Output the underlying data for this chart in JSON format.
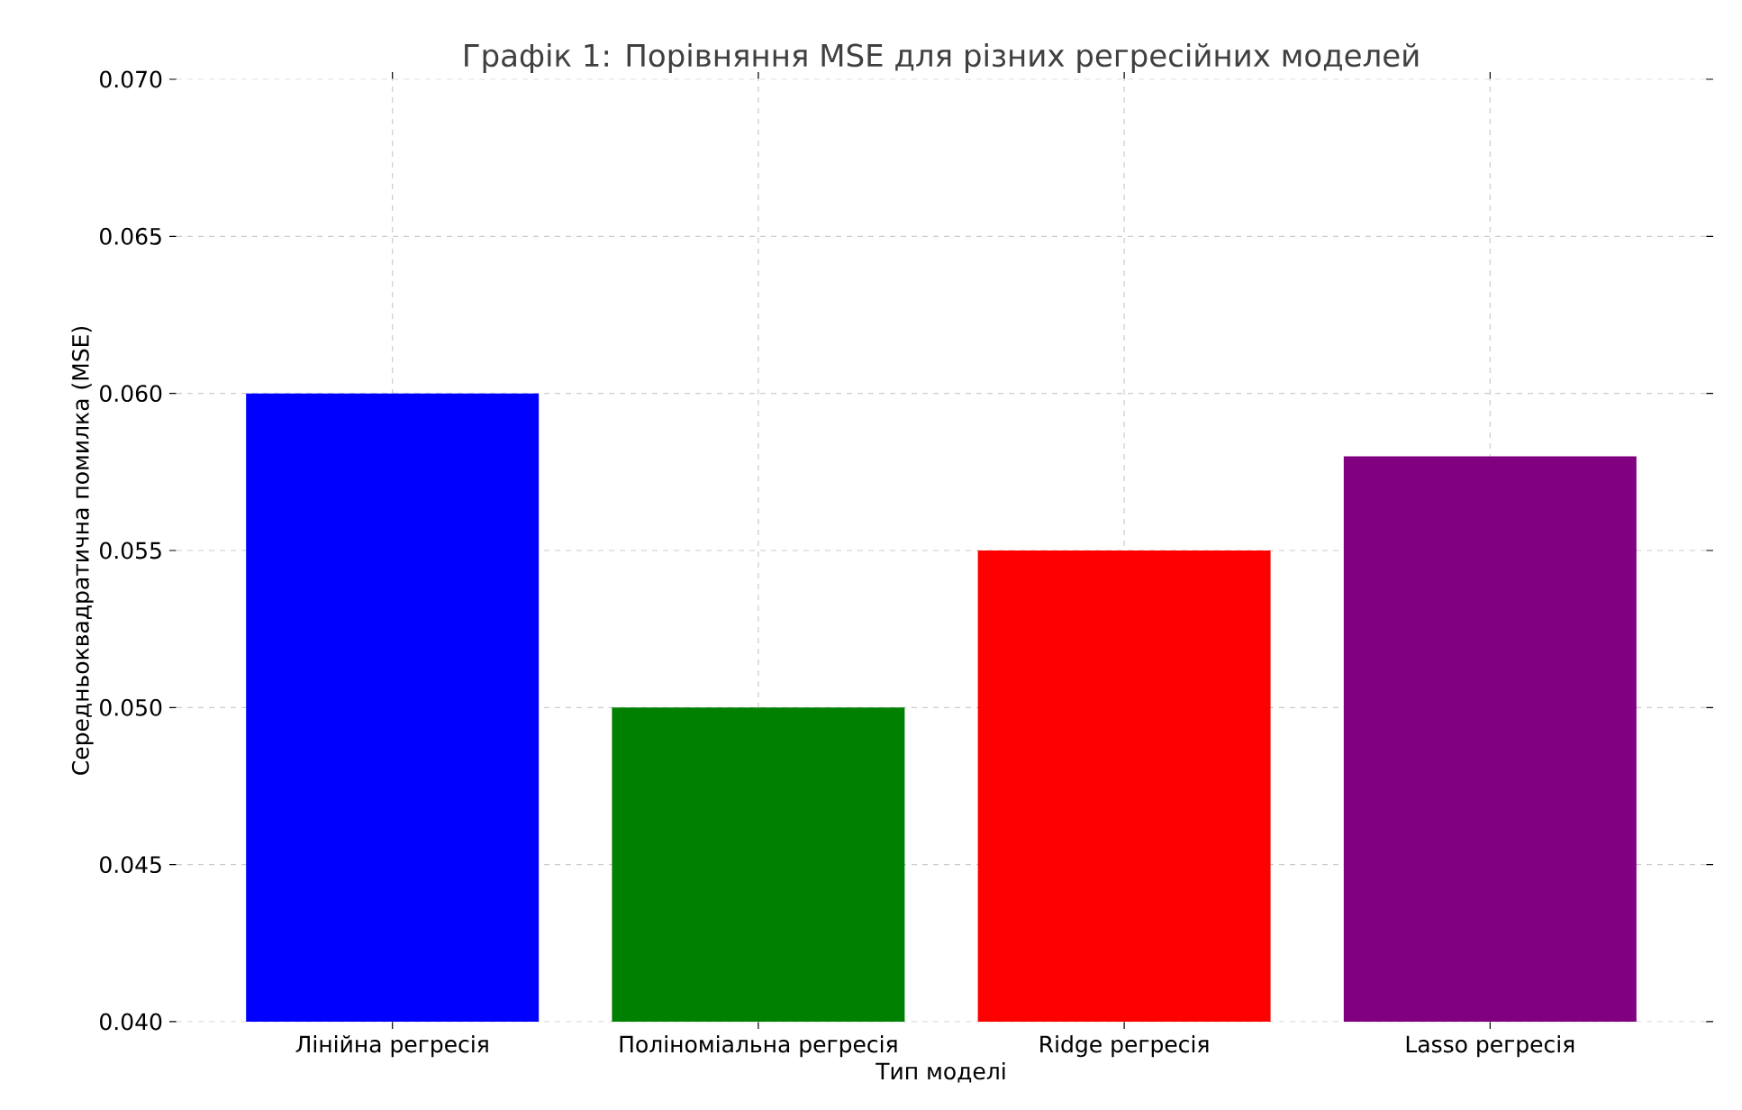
{
  "chart_data": {
    "type": "bar",
    "title": "Графік 1: Порівняння MSE для різних регресійних моделей",
    "xlabel": "Тип моделі",
    "ylabel": "Середньоквадратична помилка (MSE)",
    "categories": [
      "Лінійна регресія",
      "Поліноміальна регресія",
      "Ridge регресія",
      "Lasso регресія"
    ],
    "values": [
      0.06,
      0.05,
      0.055,
      0.058
    ],
    "colors": [
      "#0000ff",
      "#008000",
      "#ff0000",
      "#800080"
    ],
    "ylim": [
      0.04,
      0.07
    ],
    "yticks": [
      {
        "value": 0.04,
        "label": "0.040"
      },
      {
        "value": 0.045,
        "label": "0.045"
      },
      {
        "value": 0.05,
        "label": "0.050"
      },
      {
        "value": 0.055,
        "label": "0.055"
      },
      {
        "value": 0.06,
        "label": "0.060"
      },
      {
        "value": 0.065,
        "label": "0.065"
      },
      {
        "value": 0.07,
        "label": "0.070"
      }
    ],
    "grid": true
  }
}
